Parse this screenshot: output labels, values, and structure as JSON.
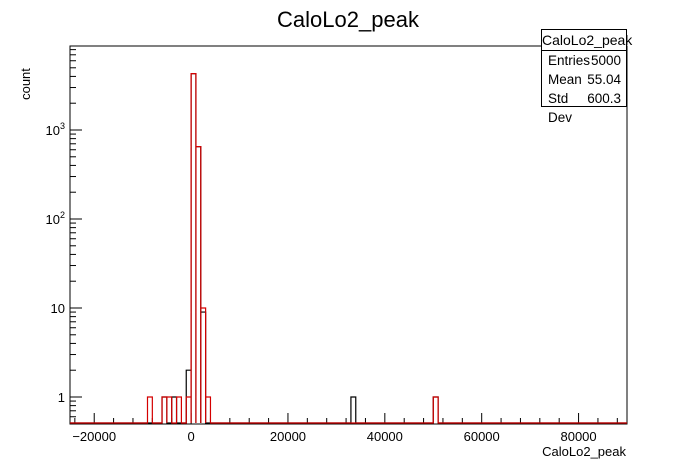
{
  "chart_data": {
    "type": "histogram",
    "title": "CaloLo2_peak",
    "xlabel": "CaloLo2_peak",
    "ylabel": "count",
    "xlim": [
      -25000,
      90000
    ],
    "ylim": [
      0.5,
      8000
    ],
    "yscale": "log",
    "x_ticks": [
      -20000,
      0,
      20000,
      40000,
      60000,
      80000
    ],
    "x_tick_labels": [
      "−20000",
      "0",
      "20000",
      "40000",
      "60000",
      "80000"
    ],
    "y_ticks": [
      1,
      10,
      100,
      1000
    ],
    "y_tick_labels": [
      "1",
      "10",
      "10²",
      "10³"
    ],
    "series": [
      {
        "color": "#000000",
        "bins": [
          {
            "x0": -6000,
            "x1": -5000,
            "count": 1
          },
          {
            "x0": -4000,
            "x1": -3000,
            "count": 1
          },
          {
            "x0": -1000,
            "x1": 0,
            "count": 2
          },
          {
            "x0": 0,
            "x1": 1000,
            "count": 4300
          },
          {
            "x0": 1000,
            "x1": 2000,
            "count": 650
          },
          {
            "x0": 2000,
            "x1": 3000,
            "count": 9
          },
          {
            "x0": 33000,
            "x1": 34000,
            "count": 1
          },
          {
            "x0": 50000,
            "x1": 51000,
            "count": 1
          }
        ]
      },
      {
        "color": "#d40000",
        "bins": [
          {
            "x0": -9000,
            "x1": -8000,
            "count": 1
          },
          {
            "x0": -6000,
            "x1": -5000,
            "count": 1
          },
          {
            "x0": -5000,
            "x1": -4000,
            "count": 1
          },
          {
            "x0": -3000,
            "x1": -2000,
            "count": 1
          },
          {
            "x0": -1000,
            "x1": 0,
            "count": 1
          },
          {
            "x0": 0,
            "x1": 1000,
            "count": 4300
          },
          {
            "x0": 1000,
            "x1": 2000,
            "count": 650
          },
          {
            "x0": 2000,
            "x1": 3000,
            "count": 10
          },
          {
            "x0": 3000,
            "x1": 4000,
            "count": 1
          },
          {
            "x0": 50000,
            "x1": 51000,
            "count": 1
          }
        ]
      }
    ]
  },
  "stats": {
    "title": "CaloLo2_peak",
    "rows": [
      {
        "label": "Entries",
        "value": "5000"
      },
      {
        "label": "Mean",
        "value": "55.04"
      },
      {
        "label": "Std Dev",
        "value": "600.3"
      }
    ]
  }
}
